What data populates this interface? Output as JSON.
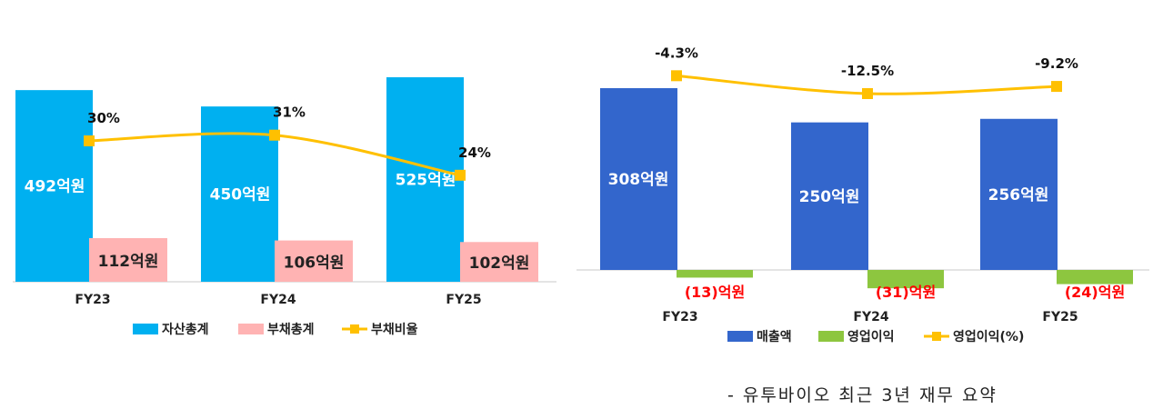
{
  "caption": "- 유투바이오 최근 3년 재무 요약",
  "chart_data": [
    {
      "type": "bar",
      "categories": [
        "FY23",
        "FY24",
        "FY25"
      ],
      "series": [
        {
          "name": "자산총계",
          "kind": "bar",
          "values": [
            492,
            450,
            525
          ],
          "labels": [
            "492억원",
            "450억원",
            "525억원"
          ],
          "color": "#00B0F0"
        },
        {
          "name": "부채총계",
          "kind": "bar",
          "values": [
            112,
            106,
            102
          ],
          "labels": [
            "112억원",
            "106억원",
            "102억원"
          ],
          "color": "#FFB3B3"
        },
        {
          "name": "부채비율",
          "kind": "line",
          "values": [
            30,
            31,
            24
          ],
          "labels": [
            "30%",
            "31%",
            "24%"
          ],
          "color": "#FFC000"
        }
      ],
      "legend_position": "bottom"
    },
    {
      "type": "bar",
      "categories": [
        "FY23",
        "FY24",
        "FY25"
      ],
      "series": [
        {
          "name": "매출액",
          "kind": "bar",
          "values": [
            308,
            250,
            256
          ],
          "labels": [
            "308억원",
            "250억원",
            "256억원"
          ],
          "color": "#3366CC"
        },
        {
          "name": "영업이익",
          "kind": "bar",
          "values": [
            -13,
            -31,
            -24
          ],
          "labels": [
            "(13)억원",
            "(31)억원",
            "(24)억원"
          ],
          "color": "#8DC63F",
          "label_color": "#FF0000"
        },
        {
          "name": "영업이익(%)",
          "kind": "line",
          "values": [
            -4.3,
            -12.5,
            -9.2
          ],
          "labels": [
            "-4.3%",
            "-12.5%",
            "-9.2%"
          ],
          "color": "#FFC000"
        }
      ],
      "legend_position": "bottom"
    }
  ]
}
